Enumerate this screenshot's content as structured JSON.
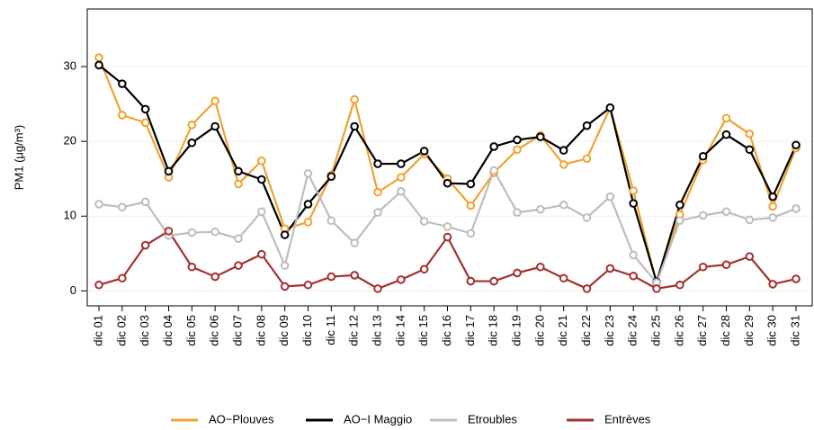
{
  "chart_data": {
    "type": "line",
    "y_label": "PM1 (μg/m³)",
    "categories": [
      "dic 01",
      "dic 02",
      "dic 03",
      "dic 04",
      "dic 05",
      "dic 06",
      "dic 07",
      "dic 08",
      "dic 09",
      "dic 10",
      "dic 11",
      "dic 12",
      "dic 13",
      "dic 14",
      "dic 15",
      "dic 16",
      "dic 17",
      "dic 18",
      "dic 19",
      "dic 20",
      "dic 21",
      "dic 22",
      "dic 23",
      "dic 24",
      "dic 25",
      "dic 26",
      "dic 27",
      "dic 28",
      "dic 29",
      "dic 30",
      "dic 31"
    ],
    "series": [
      {
        "name": "AO−Plouves",
        "color": "#f0a22e",
        "values": [
          31.2,
          23.5,
          22.5,
          15.2,
          22.2,
          25.4,
          14.3,
          17.4,
          8.3,
          9.2,
          15.5,
          25.6,
          13.2,
          15.2,
          18.3,
          15.0,
          11.4,
          15.8,
          18.9,
          20.8,
          16.9,
          17.7,
          24.5,
          13.4,
          1.0,
          10.2,
          17.5,
          23.1,
          21.0,
          11.3,
          19.1
        ]
      },
      {
        "name": "AO−I Maggio",
        "color": "#000000",
        "values": [
          30.2,
          27.7,
          24.3,
          16.0,
          19.8,
          22.0,
          16.0,
          14.9,
          7.5,
          11.6,
          15.3,
          22.0,
          17.0,
          17.0,
          18.7,
          14.4,
          14.3,
          19.3,
          20.2,
          20.6,
          18.8,
          22.1,
          24.5,
          11.7,
          1.2,
          11.5,
          18.0,
          20.9,
          18.9,
          12.6,
          19.5
        ]
      },
      {
        "name": "Etroubles",
        "color": "#bdbdbd",
        "values": [
          11.6,
          11.2,
          11.9,
          7.4,
          7.8,
          7.9,
          7.0,
          10.6,
          3.4,
          15.7,
          9.4,
          6.4,
          10.5,
          13.3,
          9.3,
          8.6,
          7.7,
          16.1,
          10.5,
          10.9,
          11.5,
          9.8,
          12.6,
          4.8,
          1.1,
          9.4,
          10.1,
          10.6,
          9.5,
          9.8,
          11.0
        ]
      },
      {
        "name": "Entrèves",
        "color": "#a3302f",
        "values": [
          0.8,
          1.7,
          6.1,
          8.0,
          3.2,
          1.9,
          3.4,
          4.9,
          0.6,
          0.8,
          1.9,
          2.1,
          0.3,
          1.5,
          2.9,
          7.2,
          1.3,
          1.3,
          2.4,
          3.2,
          1.7,
          0.3,
          3.0,
          2.0,
          0.3,
          0.8,
          3.2,
          3.5,
          4.6,
          0.9,
          1.6
        ]
      }
    ],
    "ylim": [
      -2.0,
      37.7
    ],
    "yticks": [
      0,
      10,
      20,
      30
    ],
    "grid": true,
    "legend": "bottom"
  }
}
